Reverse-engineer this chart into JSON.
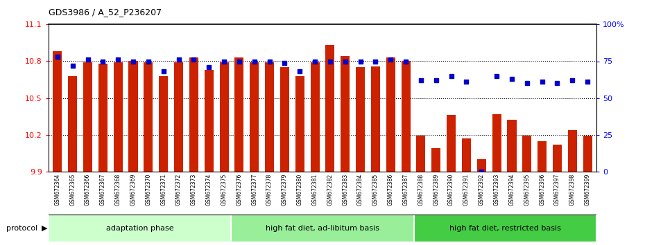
{
  "title": "GDS3986 / A_52_P236207",
  "samples": [
    "GSM672364",
    "GSM672365",
    "GSM672366",
    "GSM672367",
    "GSM672368",
    "GSM672369",
    "GSM672370",
    "GSM672371",
    "GSM672372",
    "GSM672373",
    "GSM672374",
    "GSM672375",
    "GSM672376",
    "GSM672377",
    "GSM672378",
    "GSM672379",
    "GSM672380",
    "GSM672381",
    "GSM672382",
    "GSM672383",
    "GSM672384",
    "GSM672385",
    "GSM672386",
    "GSM672387",
    "GSM672388",
    "GSM672389",
    "GSM672390",
    "GSM672391",
    "GSM672392",
    "GSM672393",
    "GSM672394",
    "GSM672395",
    "GSM672396",
    "GSM672397",
    "GSM672398",
    "GSM672399"
  ],
  "x_tick_labels": [
    "364",
    "365",
    "366",
    "367",
    "368",
    "369",
    "370",
    "371",
    "372",
    "373",
    "374",
    "375",
    "376",
    "377",
    "378",
    "379",
    "380",
    "381",
    "382",
    "383",
    "384",
    "385",
    "386",
    "387",
    "388",
    "389",
    "390",
    "391",
    "392",
    "393",
    "394",
    "395",
    "396",
    "397",
    "398",
    "399"
  ],
  "red_values": [
    10.88,
    10.68,
    10.79,
    10.78,
    10.79,
    10.8,
    10.79,
    10.68,
    10.79,
    10.83,
    10.73,
    10.79,
    10.83,
    10.79,
    10.79,
    10.75,
    10.68,
    10.79,
    10.93,
    10.84,
    10.75,
    10.76,
    10.83,
    10.8,
    10.19,
    10.09,
    10.36,
    10.17,
    10.0,
    10.37,
    10.32,
    10.19,
    10.15,
    10.12,
    10.24,
    10.19
  ],
  "blue_values": [
    78,
    72,
    76,
    75,
    76,
    75,
    75,
    68,
    76,
    76,
    71,
    75,
    75,
    75,
    75,
    74,
    68,
    75,
    75,
    75,
    75,
    75,
    76,
    75,
    62,
    62,
    65,
    61,
    0,
    65,
    63,
    60,
    61,
    60,
    62,
    61
  ],
  "groups": [
    {
      "label": "adaptation phase",
      "start": 0,
      "end": 12,
      "color": "#ccffcc"
    },
    {
      "label": "high fat diet, ad-libitum basis",
      "start": 12,
      "end": 24,
      "color": "#99ee99"
    },
    {
      "label": "high fat diet, restricted basis",
      "start": 24,
      "end": 36,
      "color": "#44cc44"
    }
  ],
  "ylim_left": [
    9.9,
    11.1
  ],
  "ylim_right": [
    0,
    100
  ],
  "yticks_left": [
    9.9,
    10.2,
    10.5,
    10.8,
    11.1
  ],
  "yticks_right": [
    0,
    25,
    50,
    75,
    100
  ],
  "ytick_labels_left": [
    "9.9",
    "10.2",
    "10.5",
    "10.8",
    "11.1"
  ],
  "ytick_labels_right": [
    "0",
    "25",
    "50",
    "75",
    "100%"
  ],
  "bar_color": "#cc2200",
  "dot_color": "#0000cc",
  "protocol_label": "protocol"
}
